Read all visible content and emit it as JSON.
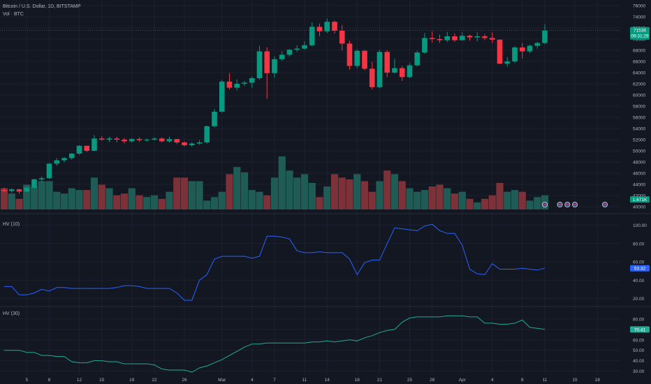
{
  "header": {
    "symbol_line": "Bitcoin / U.S. Dollar, 1D, BITSTAMP",
    "volume_label": "Vol · BTC"
  },
  "colors": {
    "background": "#131722",
    "up": "#089981",
    "down": "#f23645",
    "vol_up": "#1e5c55",
    "vol_down": "#7c3238",
    "hv10_line": "#2962ff",
    "hv30_line": "#22ab94",
    "grid": "#1c2030",
    "text": "#b2b5be"
  },
  "chart_data": [
    {
      "type": "candlestick",
      "title": "Bitcoin / U.S. Dollar, 1D, BITSTAMP",
      "price_axis_ticks": [
        40000,
        42000,
        44000,
        46000,
        48000,
        50000,
        52000,
        54000,
        56000,
        58000,
        60000,
        62000,
        64000,
        66000,
        68000,
        70000,
        72000,
        74000,
        76000
      ],
      "ylim": [
        39500,
        76500
      ],
      "x_ticks": [
        "5",
        "8",
        "12",
        "15",
        "19",
        "22",
        "26",
        "Mar",
        "4",
        "7",
        "11",
        "14",
        "18",
        "21",
        "25",
        "28",
        "Apr",
        "4",
        "8",
        "11",
        "15",
        "18"
      ],
      "current_price": "71536",
      "countdown": "09:31:29",
      "candles": [
        [
          43000,
          43400,
          42600,
          42800
        ],
        [
          42800,
          43300,
          42500,
          43100
        ],
        [
          43100,
          43200,
          42300,
          42700
        ],
        [
          42700,
          43700,
          42600,
          43400
        ],
        [
          43400,
          45000,
          43200,
          44900
        ],
        [
          44900,
          45400,
          44300,
          45100
        ],
        [
          45100,
          47800,
          45000,
          47700
        ],
        [
          47700,
          48700,
          47300,
          48300
        ],
        [
          48300,
          48900,
          47900,
          48700
        ],
        [
          48700,
          49600,
          48400,
          49500
        ],
        [
          49500,
          51000,
          49300,
          50900
        ],
        [
          50900,
          50900,
          49800,
          50000
        ],
        [
          50000,
          52800,
          49900,
          52200
        ],
        [
          52200,
          52600,
          51800,
          52000
        ],
        [
          52000,
          52500,
          51600,
          52200
        ],
        [
          52200,
          52500,
          51500,
          52000
        ],
        [
          52000,
          52300,
          51300,
          51700
        ],
        [
          51700,
          52300,
          51500,
          52100
        ],
        [
          52100,
          52400,
          51600,
          51900
        ],
        [
          51900,
          52200,
          51600,
          52000
        ],
        [
          52000,
          52400,
          51800,
          52200
        ],
        [
          52200,
          52400,
          51500,
          51700
        ],
        [
          51700,
          52500,
          51500,
          52100
        ],
        [
          52100,
          52100,
          51200,
          51500
        ],
        [
          51500,
          51700,
          50800,
          51000
        ],
        [
          51000,
          51500,
          50700,
          51300
        ],
        [
          51300,
          51900,
          51100,
          51500
        ],
        [
          51500,
          54500,
          51300,
          54400
        ],
        [
          54400,
          57500,
          54200,
          57000
        ],
        [
          57000,
          62700,
          56800,
          62400
        ],
        [
          62400,
          63900,
          61000,
          61300
        ],
        [
          61300,
          62800,
          60800,
          62000
        ],
        [
          62000,
          62500,
          61600,
          62200
        ],
        [
          62200,
          63300,
          61300,
          63000
        ],
        [
          63000,
          68800,
          62700,
          67800
        ],
        [
          67800,
          68500,
          59300,
          63900
        ],
        [
          63900,
          66900,
          63100,
          66400
        ],
        [
          66400,
          67800,
          66100,
          67200
        ],
        [
          67200,
          68200,
          66900,
          68100
        ],
        [
          68100,
          68900,
          67700,
          68300
        ],
        [
          68300,
          69600,
          68100,
          68900
        ],
        [
          68900,
          73000,
          68700,
          72200
        ],
        [
          72200,
          72800,
          70500,
          71400
        ],
        [
          71400,
          73700,
          71100,
          73100
        ],
        [
          73100,
          73300,
          71000,
          71500
        ],
        [
          71500,
          72500,
          68000,
          69200
        ],
        [
          69200,
          69700,
          64500,
          65200
        ],
        [
          65200,
          68200,
          64800,
          67900
        ],
        [
          67900,
          68100,
          64400,
          64700
        ],
        [
          64700,
          65900,
          61000,
          61400
        ],
        [
          61400,
          68100,
          61200,
          67700
        ],
        [
          67700,
          68000,
          63200,
          64000
        ],
        [
          64000,
          66500,
          63800,
          64800
        ],
        [
          64800,
          65200,
          62500,
          63200
        ],
        [
          63200,
          65700,
          63000,
          65300
        ],
        [
          65300,
          67900,
          65100,
          67600
        ],
        [
          67600,
          71100,
          67400,
          70200
        ],
        [
          70200,
          71400,
          69400,
          70000
        ],
        [
          70000,
          70800,
          69300,
          69800
        ],
        [
          69800,
          71300,
          69500,
          70500
        ],
        [
          70500,
          71000,
          69500,
          69800
        ],
        [
          69800,
          71200,
          69700,
          70600
        ],
        [
          70600,
          70800,
          69700,
          70300
        ],
        [
          70300,
          71200,
          69600,
          70500
        ],
        [
          70500,
          70900,
          69800,
          70200
        ],
        [
          70200,
          71200,
          69300,
          69900
        ],
        [
          69900,
          69900,
          65500,
          65600
        ],
        [
          65600,
          66800,
          65100,
          66000
        ],
        [
          66000,
          68700,
          65700,
          68500
        ],
        [
          68500,
          69300,
          66500,
          67800
        ],
        [
          67800,
          69000,
          67500,
          68800
        ],
        [
          68800,
          69500,
          68300,
          69300
        ],
        [
          69300,
          72700,
          69100,
          71536
        ]
      ],
      "volume": [
        12,
        9,
        6,
        14,
        13,
        16,
        16,
        10,
        9,
        12,
        11,
        11,
        18,
        14,
        12,
        8,
        9,
        12,
        8,
        7,
        8,
        6,
        10,
        18,
        18,
        16,
        16,
        5,
        7,
        10,
        20,
        24,
        21,
        11,
        10,
        8,
        18,
        30,
        22,
        18,
        20,
        15,
        7,
        13,
        20,
        18,
        17,
        20,
        16,
        10,
        16,
        22,
        20,
        16,
        12,
        10,
        11,
        13,
        14,
        12,
        9,
        10,
        6,
        4,
        6,
        8,
        15,
        10,
        11,
        10,
        5,
        7,
        8
      ],
      "volume_label": "1.671K"
    },
    {
      "type": "line",
      "title": "HV (10)",
      "y_ticks": [
        20.0,
        40.0,
        60.0,
        80.0,
        100.0
      ],
      "ylim": [
        12,
        108
      ],
      "last_value": "53.32",
      "values": [
        33,
        33,
        24,
        24,
        26,
        30,
        28,
        32,
        32,
        31,
        31,
        31,
        31,
        31,
        31,
        32,
        34,
        34,
        33,
        31,
        31,
        31,
        31,
        26,
        18,
        18,
        40,
        46,
        63,
        66,
        66,
        66,
        66,
        64,
        66,
        88,
        88,
        87,
        85,
        72,
        70,
        70,
        71,
        70,
        70,
        70,
        63,
        46,
        59,
        62,
        62,
        80,
        97,
        96,
        95,
        94,
        99,
        101,
        94,
        91,
        91,
        78,
        52,
        47,
        46,
        58,
        52,
        52,
        52,
        53,
        52,
        51,
        53
      ]
    },
    {
      "type": "line",
      "title": "HV (30)",
      "y_ticks": [
        30.0,
        40.0,
        50.0,
        60.0,
        70.0,
        80.0
      ],
      "ylim": [
        27,
        90
      ],
      "last_value": "70.41",
      "values": [
        50,
        50,
        50,
        48,
        48,
        45,
        45,
        44,
        44,
        39,
        38,
        38,
        40,
        40,
        39,
        39,
        37,
        37,
        37,
        37,
        36,
        32,
        31,
        31,
        31,
        29,
        33,
        35,
        38,
        41,
        45,
        49,
        53,
        56,
        56,
        57,
        57,
        57,
        57,
        57,
        57,
        58,
        58,
        59,
        58,
        59,
        60,
        59,
        62,
        64,
        67,
        69,
        70,
        77,
        81,
        82,
        82,
        82,
        82,
        83,
        83,
        83,
        82,
        82,
        76,
        76,
        75,
        75,
        76,
        79,
        72,
        71,
        70
      ]
    }
  ]
}
